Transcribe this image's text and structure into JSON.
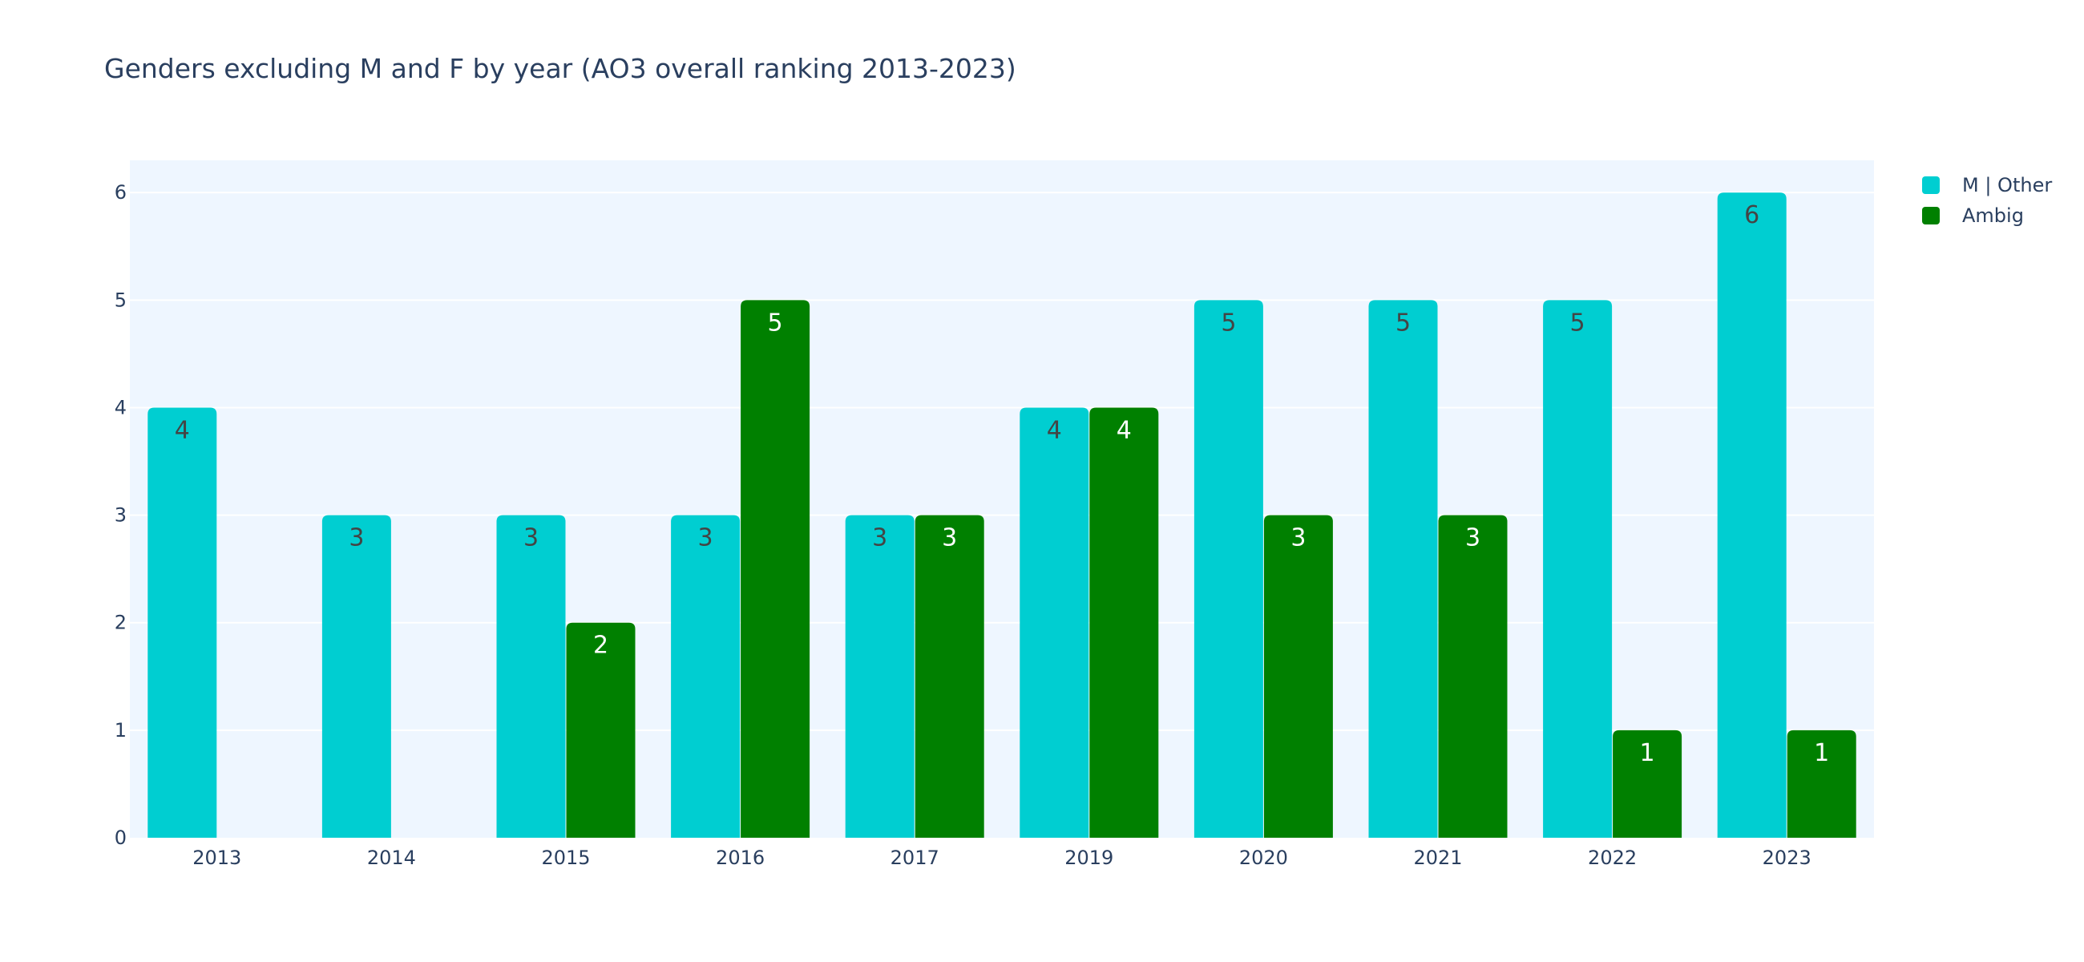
{
  "chart_data": {
    "type": "bar",
    "title": "Genders excluding M and F by year (AO3 overall ranking 2013-2023)",
    "xlabel": "",
    "ylabel": "",
    "categories": [
      "2013",
      "2014",
      "2015",
      "2016",
      "2017",
      "2019",
      "2020",
      "2021",
      "2022",
      "2023"
    ],
    "series": [
      {
        "name": "M | Other",
        "color": "#00ced1",
        "label_color": "#444444",
        "values": [
          4,
          3,
          3,
          3,
          3,
          4,
          5,
          5,
          5,
          6
        ]
      },
      {
        "name": "Ambig",
        "color": "#008000",
        "label_color": "#ffffff",
        "values": [
          null,
          null,
          2,
          5,
          3,
          4,
          3,
          3,
          1,
          1
        ]
      }
    ],
    "ylim": [
      0,
      6.3
    ],
    "yticks": [
      0,
      1,
      2,
      3,
      4,
      5,
      6
    ],
    "grid": true,
    "plot_bgcolor": "#eef6ff",
    "legend_position": "top-right"
  }
}
